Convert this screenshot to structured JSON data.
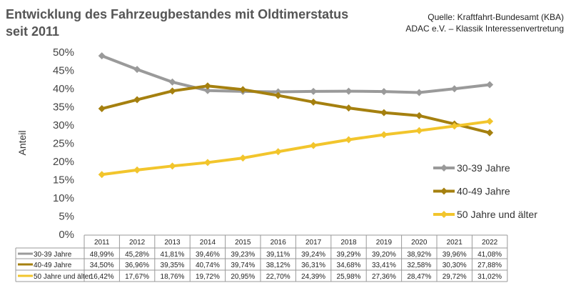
{
  "chart_data": {
    "type": "line",
    "title": "Entwicklung des Fahrzeugbestandes mit Oldtimerstatus seit 2011",
    "title_lines": [
      "Entwicklung des Fahrzeugbestandes mit Oldtimerstatus",
      "seit 2011"
    ],
    "source_lines": [
      "Quelle: Kraftfahrt-Bundesamt (KBA)",
      "ADAC e.V. – Klassik Interessenvertretung"
    ],
    "ylabel": "Anteil",
    "xlabel": "",
    "ylim": [
      0,
      50
    ],
    "yticks": [
      "0%",
      "5%",
      "10%",
      "15%",
      "20%",
      "25%",
      "30%",
      "35%",
      "40%",
      "45%",
      "50%"
    ],
    "grid": false,
    "legend": "right",
    "categories": [
      "2011",
      "2012",
      "2013",
      "2014",
      "2015",
      "2016",
      "2017",
      "2018",
      "2019",
      "2020",
      "2021",
      "2022"
    ],
    "series": [
      {
        "name": "30-39 Jahre",
        "color": "#9a9a9a",
        "values": [
          48.99,
          45.28,
          41.81,
          39.46,
          39.23,
          39.11,
          39.24,
          39.29,
          39.2,
          38.92,
          39.96,
          41.08
        ],
        "labels": [
          "48,99%",
          "45,28%",
          "41,81%",
          "39,46%",
          "39,23%",
          "39,11%",
          "39,24%",
          "39,29%",
          "39,20%",
          "38,92%",
          "39,96%",
          "41,08%"
        ]
      },
      {
        "name": "40-49 Jahre",
        "color": "#a5800f",
        "values": [
          34.5,
          36.96,
          39.35,
          40.74,
          39.74,
          38.12,
          36.31,
          34.68,
          33.41,
          32.58,
          30.3,
          27.88
        ],
        "labels": [
          "34,50%",
          "36,96%",
          "39,35%",
          "40,74%",
          "39,74%",
          "38,12%",
          "36,31%",
          "34,68%",
          "33,41%",
          "32,58%",
          "30,30%",
          "27,88%"
        ]
      },
      {
        "name": "50 Jahre und älter",
        "color": "#f2c52c",
        "values": [
          16.42,
          17.67,
          18.76,
          19.72,
          20.95,
          22.7,
          24.39,
          25.98,
          27.36,
          28.47,
          29.72,
          31.02
        ],
        "labels": [
          "16,42%",
          "17,67%",
          "18,76%",
          "19,72%",
          "20,95%",
          "22,70%",
          "24,39%",
          "25,98%",
          "27,36%",
          "28,47%",
          "29,72%",
          "31,02%"
        ]
      }
    ]
  }
}
